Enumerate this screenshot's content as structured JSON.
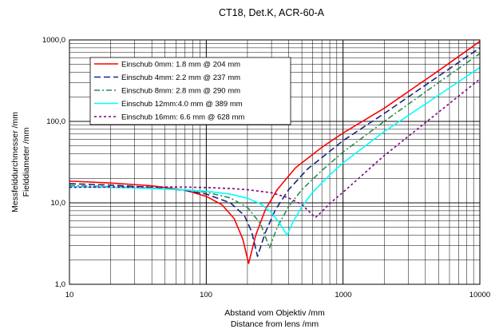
{
  "chart_data": {
    "type": "line",
    "title": "CT18, Det.K, ACR-60-A",
    "xlabel": [
      "Abstand vom Objektiv /mm",
      "Distance from lens /mm"
    ],
    "ylabel": [
      "Messfelddurchmesser /mm",
      "Fielddiameter /mm"
    ],
    "x_scale": "log",
    "y_scale": "log",
    "xlim": [
      10,
      10000
    ],
    "ylim": [
      1,
      1000
    ],
    "x_ticks": [
      "10",
      "100",
      "1000",
      "10000"
    ],
    "y_ticks": [
      "1,0",
      "10,0",
      "100,0",
      "1000,0"
    ],
    "grid": true,
    "legend_position": "upper-left",
    "series": [
      {
        "name": "Einschub 0mm: 1.8 mm @ 204 mm",
        "color": "#ff0000",
        "dash": "solid",
        "x": [
          10,
          20,
          40,
          70,
          100,
          130,
          160,
          185,
          204,
          230,
          270,
          330,
          450,
          700,
          1000,
          2000,
          5000,
          10000
        ],
        "y": [
          18.5,
          17.5,
          16.2,
          14.3,
          12.0,
          9.5,
          6.4,
          3.6,
          1.8,
          4.0,
          8.2,
          14.5,
          27,
          48,
          72,
          145,
          420,
          960
        ]
      },
      {
        "name": "Einschub 4mm: 2.2 mm @ 237 mm",
        "color": "#1a237e",
        "dash": "long-dash",
        "x": [
          10,
          20,
          40,
          70,
          100,
          150,
          190,
          215,
          237,
          270,
          320,
          400,
          550,
          800,
          1000,
          2000,
          5000,
          10000
        ],
        "y": [
          17.2,
          16.5,
          15.5,
          14.2,
          12.8,
          10.0,
          7.0,
          4.4,
          2.2,
          4.3,
          8.2,
          14.5,
          26,
          43,
          58,
          125,
          360,
          800
        ]
      },
      {
        "name": "Einschub 8mm: 2.8 mm @ 290 mm",
        "color": "#2e8b57",
        "dash": "dash-dot",
        "x": [
          10,
          20,
          40,
          70,
          100,
          150,
          200,
          250,
          290,
          330,
          400,
          500,
          700,
          1000,
          2000,
          5000,
          10000
        ],
        "y": [
          16.3,
          15.8,
          15.2,
          14.5,
          13.5,
          11.5,
          8.8,
          5.5,
          2.8,
          5.0,
          9.0,
          14.5,
          25,
          42,
          100,
          300,
          680
        ]
      },
      {
        "name": "Einschub 12mm:4.0 mm @ 389 mm",
        "color": "#00ffff",
        "dash": "solid",
        "x": [
          10,
          20,
          40,
          70,
          100,
          150,
          200,
          250,
          300,
          350,
          389,
          430,
          500,
          600,
          800,
          1000,
          2000,
          5000,
          10000
        ],
        "y": [
          15.8,
          15.5,
          15.0,
          14.4,
          13.9,
          12.8,
          11.4,
          9.7,
          7.6,
          5.4,
          4.0,
          5.8,
          9.0,
          13.5,
          22,
          31,
          75,
          210,
          460
        ]
      },
      {
        "name": "Einschub 16mm: 6.6 mm @ 628 mm",
        "color": "#800080",
        "dash": "dotted",
        "x": [
          10,
          20,
          40,
          70,
          100,
          150,
          200,
          300,
          400,
          500,
          628,
          700,
          800,
          1000,
          2000,
          5000,
          10000
        ],
        "y": [
          15.5,
          15.6,
          15.7,
          15.6,
          15.4,
          15.0,
          14.5,
          13.3,
          11.5,
          9.5,
          6.6,
          7.8,
          9.8,
          13.5,
          38,
          130,
          330
        ]
      }
    ]
  }
}
